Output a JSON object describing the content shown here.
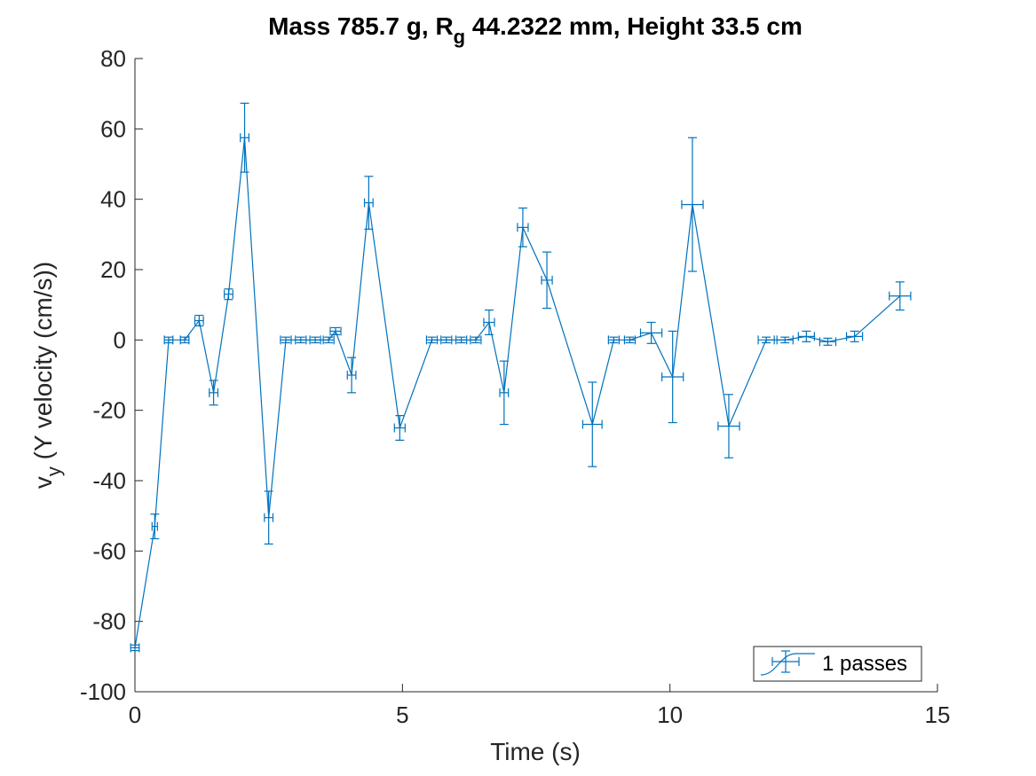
{
  "chart_data": {
    "type": "line",
    "title_parts": [
      "Mass 785.7 g, R",
      "g",
      " 44.2322 mm,  Height 33.5 cm"
    ],
    "xlabel": "Time (s)",
    "ylabel_parts": [
      "v",
      "y",
      " (Y velocity (cm/s))"
    ],
    "xlim": [
      0,
      15
    ],
    "ylim": [
      -100,
      80
    ],
    "xticks": [
      0,
      5,
      10,
      15
    ],
    "yticks": [
      -100,
      -80,
      -60,
      -40,
      -20,
      0,
      20,
      40,
      60,
      80
    ],
    "grid": false,
    "legend_position": "bottom-right",
    "color": "#0072BD",
    "series": [
      {
        "name": "1 passes",
        "points": [
          {
            "x": 0.0,
            "y": -87.5,
            "ye": 0.8,
            "xe": 0.08
          },
          {
            "x": 0.37,
            "y": -53.0,
            "ye": 3.5,
            "xe": 0.05
          },
          {
            "x": 0.63,
            "y": 0.0,
            "ye": 0.8,
            "xe": 0.08
          },
          {
            "x": 0.93,
            "y": 0.0,
            "ye": 0.8,
            "xe": 0.08
          },
          {
            "x": 1.2,
            "y": 5.5,
            "ye": 1.5,
            "xe": 0.08
          },
          {
            "x": 1.47,
            "y": -15.0,
            "ye": 3.5,
            "xe": 0.08
          },
          {
            "x": 1.75,
            "y": 13.0,
            "ye": 1.5,
            "xe": 0.08
          },
          {
            "x": 2.05,
            "y": 57.5,
            "ye": 9.8,
            "xe": 0.08
          },
          {
            "x": 2.5,
            "y": -50.5,
            "ye": 7.5,
            "xe": 0.08
          },
          {
            "x": 2.82,
            "y": 0.0,
            "ye": 0.8,
            "xe": 0.1
          },
          {
            "x": 3.1,
            "y": 0.0,
            "ye": 0.8,
            "xe": 0.1
          },
          {
            "x": 3.37,
            "y": 0.0,
            "ye": 0.8,
            "xe": 0.1
          },
          {
            "x": 3.62,
            "y": 0.0,
            "ye": 0.8,
            "xe": 0.1
          },
          {
            "x": 3.75,
            "y": 2.5,
            "ye": 1.0,
            "xe": 0.1
          },
          {
            "x": 4.05,
            "y": -10.0,
            "ye": 5.0,
            "xe": 0.08
          },
          {
            "x": 4.37,
            "y": 39.0,
            "ye": 7.5,
            "xe": 0.08
          },
          {
            "x": 4.95,
            "y": -25.0,
            "ye": 3.5,
            "xe": 0.1
          },
          {
            "x": 5.55,
            "y": 0.0,
            "ye": 0.8,
            "xe": 0.1
          },
          {
            "x": 5.82,
            "y": 0.0,
            "ye": 0.8,
            "xe": 0.1
          },
          {
            "x": 6.1,
            "y": 0.0,
            "ye": 0.8,
            "xe": 0.1
          },
          {
            "x": 6.37,
            "y": 0.0,
            "ye": 0.8,
            "xe": 0.1
          },
          {
            "x": 6.62,
            "y": 5.0,
            "ye": 3.5,
            "xe": 0.1
          },
          {
            "x": 6.9,
            "y": -15.0,
            "ye": 9.0,
            "xe": 0.08
          },
          {
            "x": 7.25,
            "y": 32.0,
            "ye": 5.5,
            "xe": 0.1
          },
          {
            "x": 7.7,
            "y": 17.0,
            "ye": 8.0,
            "xe": 0.1
          },
          {
            "x": 8.55,
            "y": -24.0,
            "ye": 12.0,
            "xe": 0.18
          },
          {
            "x": 8.95,
            "y": 0.0,
            "ye": 0.8,
            "xe": 0.1
          },
          {
            "x": 9.25,
            "y": 0.0,
            "ye": 0.8,
            "xe": 0.1
          },
          {
            "x": 9.65,
            "y": 2.0,
            "ye": 3.0,
            "xe": 0.2
          },
          {
            "x": 10.05,
            "y": -10.5,
            "ye": 13.0,
            "xe": 0.2
          },
          {
            "x": 10.42,
            "y": 38.5,
            "ye": 19.0,
            "xe": 0.2
          },
          {
            "x": 11.1,
            "y": -24.5,
            "ye": 9.0,
            "xe": 0.2
          },
          {
            "x": 11.8,
            "y": 0.0,
            "ye": 0.8,
            "xe": 0.15
          },
          {
            "x": 12.15,
            "y": 0.0,
            "ye": 0.8,
            "xe": 0.15
          },
          {
            "x": 12.55,
            "y": 1.0,
            "ye": 1.5,
            "xe": 0.15
          },
          {
            "x": 12.95,
            "y": -0.5,
            "ye": 1.0,
            "xe": 0.15
          },
          {
            "x": 13.45,
            "y": 1.0,
            "ye": 1.5,
            "xe": 0.15
          },
          {
            "x": 14.3,
            "y": 12.5,
            "ye": 4.0,
            "xe": 0.2
          }
        ]
      }
    ]
  }
}
